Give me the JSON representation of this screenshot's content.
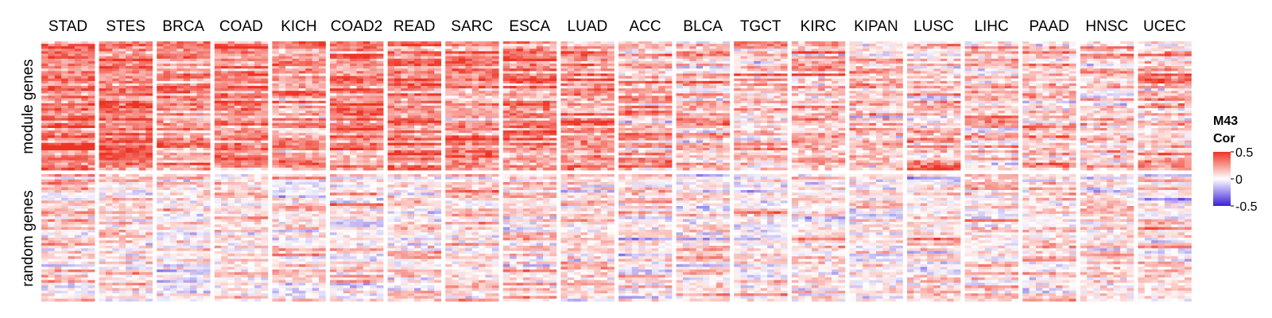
{
  "chart_data": {
    "type": "heatmap",
    "legend": {
      "title_line1": "M43",
      "title_line2": "Cor",
      "ticks": [
        0.5,
        0,
        -0.5
      ],
      "tick_labels": [
        "0.5",
        "0",
        "-0.5"
      ],
      "range": [
        -0.5,
        0.5
      ],
      "colors": {
        "low": "#3b1fd9",
        "mid": "#ffffff",
        "high": "#ee3324"
      }
    },
    "columns": [
      "STAD",
      "STES",
      "BRCA",
      "COAD",
      "KICH",
      "COAD2",
      "READ",
      "SARC",
      "ESCA",
      "LUAD",
      "ACC",
      "BLCA",
      "TGCT",
      "KIRC",
      "KIPAN",
      "LUSC",
      "LIHC",
      "PAAD",
      "HNSC",
      "UCEC"
    ],
    "rows": [
      "module genes",
      "random genes"
    ],
    "panel_summary": {
      "module genes": {
        "STAD": 0.34,
        "STES": 0.32,
        "BRCA": 0.26,
        "COAD": 0.28,
        "KICH": 0.24,
        "COAD2": 0.27,
        "READ": 0.29,
        "SARC": 0.23,
        "ESCA": 0.27,
        "LUAD": 0.25,
        "ACC": 0.18,
        "BLCA": 0.17,
        "TGCT": 0.15,
        "KIRC": 0.16,
        "KIPAN": 0.14,
        "LUSC": 0.15,
        "LIHC": 0.14,
        "PAAD": 0.13,
        "HNSC": 0.1,
        "UCEC": 0.17
      },
      "random genes": {
        "STAD": 0.08,
        "STES": 0.07,
        "BRCA": 0.04,
        "COAD": 0.05,
        "KICH": 0.06,
        "COAD2": 0.04,
        "READ": 0.07,
        "SARC": 0.09,
        "ESCA": 0.07,
        "LUAD": 0.06,
        "ACC": 0.04,
        "BLCA": 0.06,
        "TGCT": 0.05,
        "KIRC": 0.05,
        "KIPAN": 0.03,
        "LUSC": 0.07,
        "LIHC": 0.07,
        "PAAD": 0.04,
        "HNSC": 0.05,
        "UCEC": 0.06
      }
    }
  }
}
